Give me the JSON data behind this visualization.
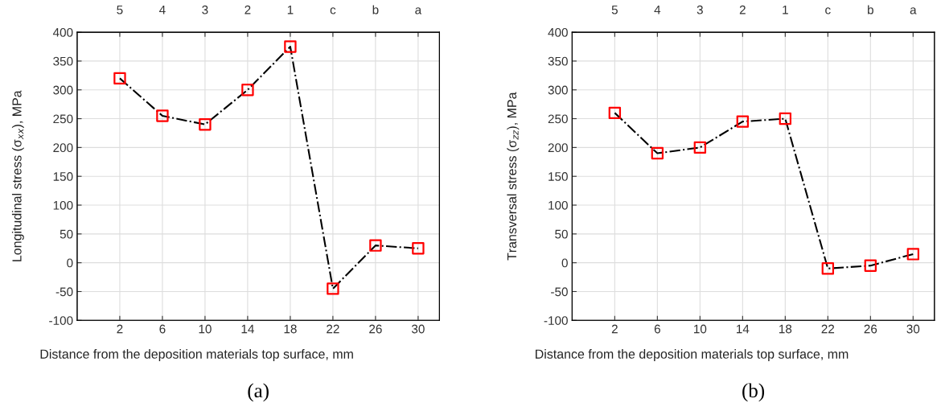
{
  "chart_data": [
    {
      "type": "line",
      "xlabel": "Distance from the deposition materials top surface, mm",
      "ylabel": "Longitudinal stress (σ$_{xx}$), MPa",
      "x": [
        2,
        6,
        10,
        14,
        18,
        22,
        26,
        30
      ],
      "series": [
        {
          "color": "#000000",
          "colors": [
            "#ff0000",
            "#ff0000",
            "#ff0000",
            "#ff0000",
            "#ff0000",
            "#ff0000",
            "#ff0000",
            "#ff0000"
          ],
          "values": [
            320,
            255,
            240,
            300,
            375,
            -45,
            30,
            25
          ]
        }
      ],
      "xlim": [
        -2,
        32
      ],
      "xticks": [
        2,
        6,
        10,
        14,
        18,
        22,
        26,
        30
      ],
      "x2lim": [
        6,
        -2.5
      ],
      "x2ticks": [
        5,
        4,
        3,
        2,
        1,
        {
          "value": 0,
          "label": "c"
        },
        {
          "value": -1,
          "label": "b"
        },
        {
          "value": -2,
          "label": "a"
        }
      ],
      "ylim": [
        -100,
        400
      ],
      "yticks": [
        -100,
        -50,
        0,
        50,
        100,
        150,
        200,
        250,
        300,
        350,
        400
      ],
      "grid": true,
      "marker": "square",
      "line_style": "dashdot",
      "annotations": [
        "(a)"
      ]
    },
    {
      "type": "line",
      "xlabel": "Distance from the deposition materials top surface, mm",
      "ylabel": "Transversal stress (σ$_{zz}$), MPa",
      "x": [
        2,
        6,
        10,
        14,
        18,
        22,
        26,
        30
      ],
      "series": [
        {
          "color": "#000000",
          "colors": [
            "#ff0000",
            "#ff0000",
            "#ff0000",
            "#ff0000",
            "#ff0000",
            "#ff0000",
            "#ff0000",
            "#ff0000"
          ],
          "values": [
            260,
            190,
            200,
            245,
            250,
            -10,
            -5,
            15
          ]
        }
      ],
      "xlim": [
        -2,
        32
      ],
      "xticks": [
        2,
        6,
        10,
        14,
        18,
        22,
        26,
        30
      ],
      "x2lim": [
        6,
        -2.5
      ],
      "x2ticks": [
        5,
        4,
        3,
        2,
        1,
        {
          "value": 0,
          "label": "c"
        },
        {
          "value": -1,
          "label": "b"
        },
        {
          "value": -2,
          "label": "a"
        }
      ],
      "ylim": [
        -100,
        400
      ],
      "yticks": [
        -100,
        -50,
        0,
        50,
        100,
        150,
        200,
        250,
        300,
        350,
        400
      ],
      "grid": true,
      "marker": "square",
      "line_style": "dashdot",
      "annotations": [
        "(b)"
      ]
    }
  ]
}
